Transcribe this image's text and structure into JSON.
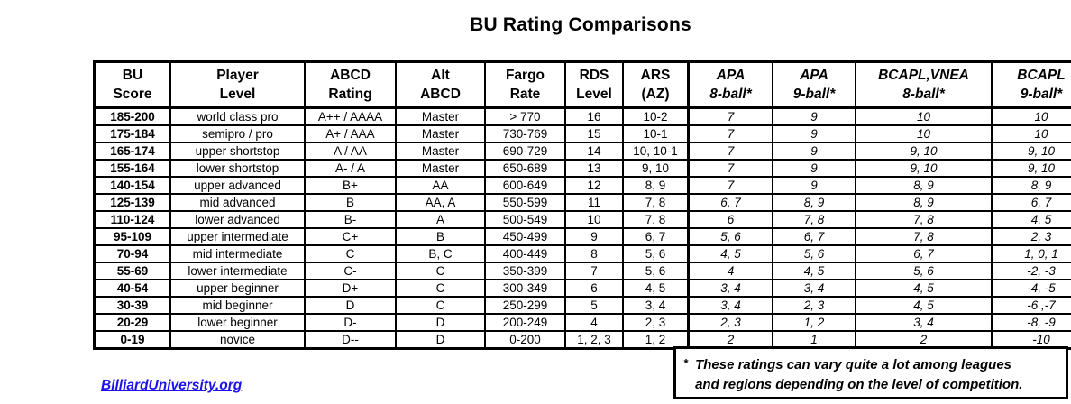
{
  "title": "BU Rating Comparisons",
  "columns": [
    {
      "line1": "BU",
      "line2": "Score",
      "italic": false
    },
    {
      "line1": "Player",
      "line2": "Level",
      "italic": false
    },
    {
      "line1": "ABCD",
      "line2": "Rating",
      "italic": false
    },
    {
      "line1": "Alt",
      "line2": "ABCD",
      "italic": false
    },
    {
      "line1": "Fargo",
      "line2": "Rate",
      "italic": false
    },
    {
      "line1": "RDS",
      "line2": "Level",
      "italic": false
    },
    {
      "line1": "ARS",
      "line2": "(AZ)",
      "italic": false
    },
    {
      "line1": "APA",
      "line2": "8-ball*",
      "italic": true
    },
    {
      "line1": "APA",
      "line2": "9-ball*",
      "italic": true
    },
    {
      "line1": "BCAPL,VNEA",
      "line2": "8-ball*",
      "italic": true
    },
    {
      "line1": "BCAPL",
      "line2": "9-ball*",
      "italic": true
    }
  ],
  "rows": [
    [
      "185-200",
      "world class pro",
      "A++ / AAAA",
      "Master",
      "> 770",
      "16",
      "10-2",
      "7",
      "9",
      "10",
      "10"
    ],
    [
      "175-184",
      "semipro / pro",
      "A+ / AAA",
      "Master",
      "730-769",
      "15",
      "10-1",
      "7",
      "9",
      "10",
      "10"
    ],
    [
      "165-174",
      "upper shortstop",
      "A / AA",
      "Master",
      "690-729",
      "14",
      "10, 10-1",
      "7",
      "9",
      "9, 10",
      "9, 10"
    ],
    [
      "155-164",
      "lower shortstop",
      "A- / A",
      "Master",
      "650-689",
      "13",
      "9, 10",
      "7",
      "9",
      "9, 10",
      "9, 10"
    ],
    [
      "140-154",
      "upper advanced",
      "B+",
      "AA",
      "600-649",
      "12",
      "8, 9",
      "7",
      "9",
      "8, 9",
      "8, 9"
    ],
    [
      "125-139",
      "mid advanced",
      "B",
      "AA, A",
      "550-599",
      "11",
      "7, 8",
      "6, 7",
      "8, 9",
      "8, 9",
      "6, 7"
    ],
    [
      "110-124",
      "lower advanced",
      "B-",
      "A",
      "500-549",
      "10",
      "7, 8",
      "6",
      "7, 8",
      "7, 8",
      "4, 5"
    ],
    [
      "95-109",
      "upper intermediate",
      "C+",
      "B",
      "450-499",
      "9",
      "6, 7",
      "5, 6",
      "6, 7",
      "7, 8",
      "2, 3"
    ],
    [
      "70-94",
      "mid intermediate",
      "C",
      "B, C",
      "400-449",
      "8",
      "5, 6",
      "4, 5",
      "5, 6",
      "6, 7",
      "1, 0, 1"
    ],
    [
      "55-69",
      "lower intermediate",
      "C-",
      "C",
      "350-399",
      "7",
      "5, 6",
      "4",
      "4, 5",
      "5, 6",
      "-2, -3"
    ],
    [
      "40-54",
      "upper beginner",
      "D+",
      "C",
      "300-349",
      "6",
      "4, 5",
      "3, 4",
      "3, 4",
      "4, 5",
      "-4, -5"
    ],
    [
      "30-39",
      "mid beginner",
      "D",
      "C",
      "250-299",
      "5",
      "3, 4",
      "3, 4",
      "2, 3",
      "4, 5",
      "-6 ,-7"
    ],
    [
      "20-29",
      "lower beginner",
      "D-",
      "D",
      "200-249",
      "4",
      "2, 3",
      "2, 3",
      "1, 2",
      "3, 4",
      "-8, -9"
    ],
    [
      "0-19",
      "novice",
      "D--",
      "D",
      "0-200",
      "1, 2, 3",
      "1, 2",
      "2",
      "1",
      "2",
      "-10"
    ]
  ],
  "footnote": {
    "marker": "*",
    "line1": "These ratings can vary quite a lot among leagues",
    "line2": "and regions depending on the level of competition."
  },
  "link_label": "BilliardUniversity.org",
  "colors": {
    "link_blue": "#1d12ef",
    "border_black": "#000000"
  }
}
